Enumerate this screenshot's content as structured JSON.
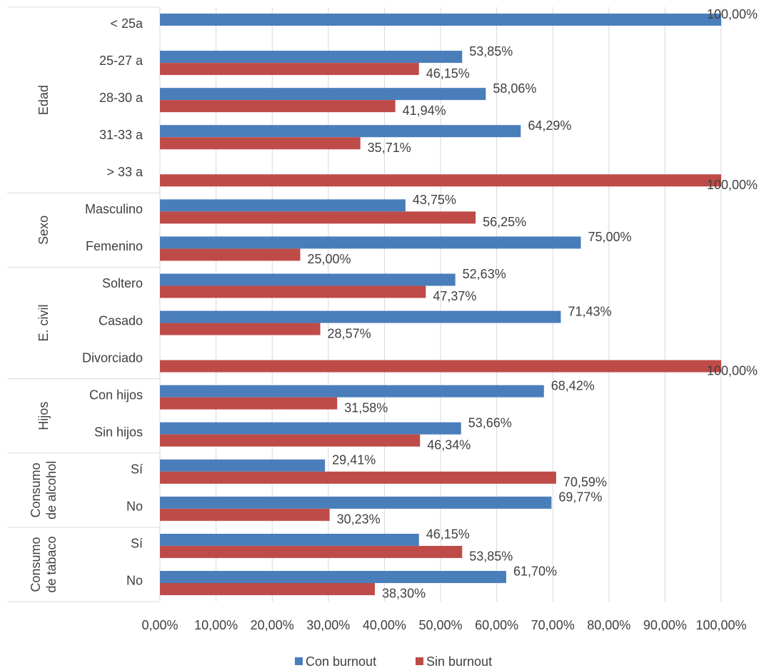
{
  "chart_data": {
    "type": "bar",
    "orientation": "horizontal",
    "categories": [
      "< 25a",
      "25-27 a",
      "28-30 a",
      "31-33 a",
      "> 33 a",
      "Masculino",
      "Femenino",
      "Soltero",
      "Casado",
      "Divorciado",
      "Con hijos",
      "Sin hijos",
      "Sí",
      "No",
      "Sí",
      "No"
    ],
    "groups": [
      {
        "lines": [
          "Edad"
        ],
        "size": 5
      },
      {
        "lines": [
          "Sexo"
        ],
        "size": 2
      },
      {
        "lines": [
          "E. civil"
        ],
        "size": 3
      },
      {
        "lines": [
          "Hijos"
        ],
        "size": 2
      },
      {
        "lines": [
          "Consumo",
          "de alcohol"
        ],
        "size": 2
      },
      {
        "lines": [
          "Consumo",
          "de tabaco"
        ],
        "size": 2
      }
    ],
    "series": [
      {
        "name": "Con burnout",
        "color": "#4a7ebb",
        "values": [
          100,
          53.85,
          58.06,
          64.29,
          null,
          43.75,
          75,
          52.63,
          71.43,
          null,
          68.42,
          53.66,
          29.41,
          69.77,
          46.15,
          61.7
        ],
        "value_labels": [
          "100,00%",
          "53,85%",
          "58,06%",
          "64,29%",
          null,
          "43,75%",
          "75,00%",
          "52,63%",
          "71,43%",
          null,
          "68,42%",
          "53,66%",
          "29,41%",
          "69,77%",
          "46,15%",
          "61,70%"
        ]
      },
      {
        "name": "Sin burnout",
        "color": "#be4b48",
        "values": [
          null,
          46.15,
          41.94,
          35.71,
          100,
          56.25,
          25,
          47.37,
          28.57,
          100,
          31.58,
          46.34,
          70.59,
          30.23,
          53.85,
          38.3
        ],
        "value_labels": [
          null,
          "46,15%",
          "41,94%",
          "35,71%",
          "100,00%",
          "56,25%",
          "25,00%",
          "47,37%",
          "28,57%",
          "100,00%",
          "31,58%",
          "46,34%",
          "70,59%",
          "30,23%",
          "53,85%",
          "38,30%"
        ]
      }
    ],
    "xlim": [
      0,
      100
    ],
    "xticks": [
      {
        "value": 0,
        "label": "0,00%"
      },
      {
        "value": 10,
        "label": "10,00%"
      },
      {
        "value": 20,
        "label": "20,00%"
      },
      {
        "value": 30,
        "label": "30,00%"
      },
      {
        "value": 40,
        "label": "40,00%"
      },
      {
        "value": 50,
        "label": "50,00%"
      },
      {
        "value": 60,
        "label": "60,00%"
      },
      {
        "value": 70,
        "label": "70,00%"
      },
      {
        "value": 80,
        "label": "80,00%"
      },
      {
        "value": 90,
        "label": "90,00%"
      },
      {
        "value": 100,
        "label": "100,00%"
      }
    ],
    "grid": true,
    "legend": "bottom"
  }
}
